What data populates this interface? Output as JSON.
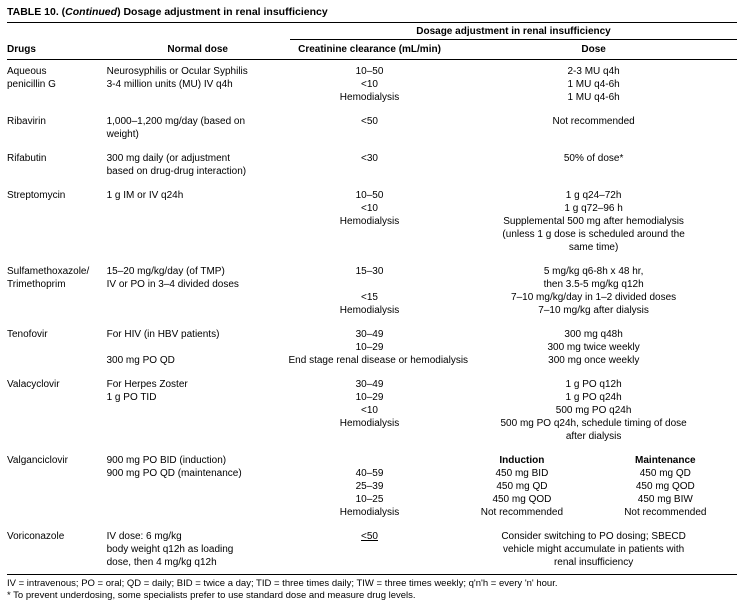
{
  "title": {
    "prefix": "TABLE 10. (",
    "italic": "Continued",
    "suffix": ") Dosage adjustment in renal insufficiency"
  },
  "header": {
    "span": "Dosage adjustment in renal insufficiency",
    "col_drugs": "Drugs",
    "col_normal": "Normal dose",
    "col_cc": "Creatinine clearance (mL/min)",
    "col_dose": "Dose"
  },
  "groups": [
    {
      "id": "aqueous-penicillin-g",
      "lines": [
        {
          "drug": "Aqueous",
          "normal": "Neurosyphilis or Ocular Syphilis",
          "cc": "10–50",
          "dose": "2-3 MU q4h"
        },
        {
          "drug": "penicillin G",
          "normal": "3-4 million units (MU) IV q4h",
          "cc": "<10",
          "dose": "1 MU q4-6h"
        },
        {
          "cc": "Hemodialysis",
          "dose": "1 MU q4-6h"
        }
      ]
    },
    {
      "id": "ribavirin",
      "lines": [
        {
          "drug": "Ribavirin",
          "normal": "1,000–1,200 mg/day (based on",
          "cc": "<50",
          "dose": "Not recommended"
        },
        {
          "normal": "weight)"
        }
      ]
    },
    {
      "id": "rifabutin",
      "lines": [
        {
          "drug": "Rifabutin",
          "normal": "300 mg daily (or adjustment",
          "cc": "<30",
          "dose": "50% of dose*"
        },
        {
          "normal": "based on drug-drug interaction)"
        }
      ]
    },
    {
      "id": "streptomycin",
      "lines": [
        {
          "drug": "Streptomycin",
          "normal": "1 g IM or IV q24h",
          "cc": "10–50",
          "dose": "1 g q24–72h"
        },
        {
          "cc": "<10",
          "dose": "1 g q72–96 h"
        },
        {
          "cc": "Hemodialysis",
          "dose": "Supplemental 500 mg after hemodialysis"
        },
        {
          "dose": "(unless 1 g dose is scheduled around the"
        },
        {
          "dose": "same time)"
        }
      ]
    },
    {
      "id": "sulfamethoxazole-trimethoprim",
      "lines": [
        {
          "drug": "Sulfamethoxazole/",
          "normal": "15–20 mg/kg/day (of TMP)",
          "cc": "15–30",
          "dose": "5 mg/kg q6-8h x 48 hr,"
        },
        {
          "drug": "Trimethoprim",
          "normal": "IV or PO in 3–4 divided doses",
          "dose": "then 3.5-5 mg/kg q12h"
        },
        {
          "cc": "<15",
          "dose": "7–10 mg/kg/day in 1–2 divided doses"
        },
        {
          "cc": "Hemodialysis",
          "dose": "7–10 mg/kg after dialysis"
        }
      ]
    },
    {
      "id": "tenofovir",
      "lines": [
        {
          "drug": "Tenofovir",
          "normal": "For HIV (in HBV patients)",
          "cc": "30–49",
          "dose": "300 mg q48h"
        },
        {
          "cc": "10–29",
          "dose": "300 mg twice weekly"
        },
        {
          "normal": "300 mg PO QD",
          "cc": "End stage renal disease or hemodialysis",
          "dose": "300 mg once weekly"
        }
      ]
    },
    {
      "id": "valacyclovir",
      "lines": [
        {
          "drug": "Valacyclovir",
          "normal": "For Herpes Zoster",
          "cc": "30–49",
          "dose": "1 g PO q12h"
        },
        {
          "normal": "1 g PO TID",
          "cc": "10–29",
          "dose": "1 g PO q24h"
        },
        {
          "cc": "<10",
          "dose": "500 mg PO q24h"
        },
        {
          "cc": "Hemodialysis",
          "dose": "500 mg PO q24h, schedule timing of dose"
        },
        {
          "dose": "after dialysis"
        }
      ]
    },
    {
      "id": "valganciclovir",
      "lines": [
        {
          "drug": "Valganciclovir",
          "normal": "900 mg PO BID (induction)",
          "dose2": [
            "Induction",
            "Maintenance"
          ],
          "dose2_bold": true
        },
        {
          "normal": "900 mg PO QD (maintenance)",
          "cc": "40–59",
          "dose2": [
            "450 mg BID",
            "450 mg QD"
          ]
        },
        {
          "cc": "25–39",
          "dose2": [
            "450 mg QD",
            "450 mg QOD"
          ]
        },
        {
          "cc": "10–25",
          "dose2": [
            "450 mg QOD",
            "450 mg BIW"
          ]
        },
        {
          "cc": "Hemodialysis",
          "dose2": [
            "Not recommended",
            "Not recommended"
          ]
        }
      ]
    },
    {
      "id": "voriconazole",
      "lines": [
        {
          "drug": "Voriconazole",
          "normal": "IV dose: 6 mg/kg",
          "cc": "<50",
          "cc_u": true,
          "dose": "Consider switching to PO dosing; SBECD"
        },
        {
          "normal": "body weight q12h as loading",
          "dose": "vehicle might accumulate in patients with"
        },
        {
          "normal": "dose, then 4 mg/kg q12h",
          "dose": "renal insufficiency"
        }
      ]
    }
  ],
  "footnotes": [
    "IV = intravenous; PO = oral; QD = daily; BID = twice a day; TID = three times daily; TIW = three times weekly; q'n'h = every 'n' hour.",
    "* To prevent underdosing, some specialists prefer to use standard dose and measure drug levels."
  ]
}
